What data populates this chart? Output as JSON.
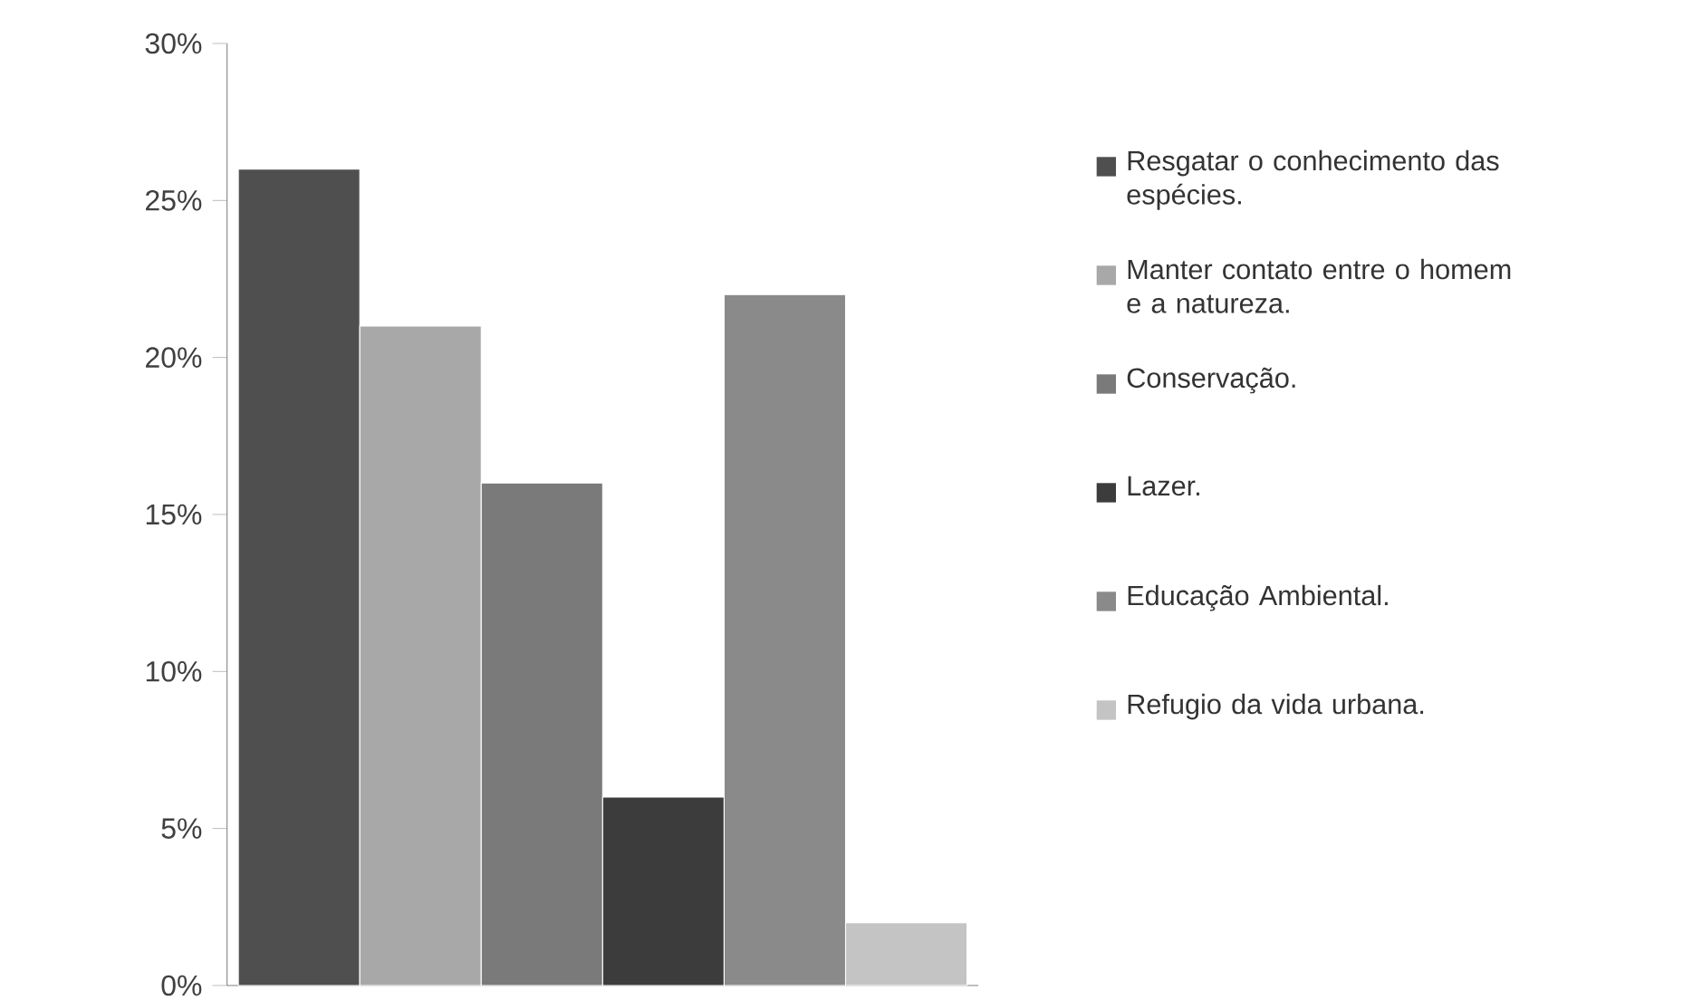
{
  "chart_data": {
    "type": "bar",
    "categories": [
      null
    ],
    "series": [
      {
        "name": "Resgatar o conhecimento das espécies.",
        "color": "#4f4f4f",
        "values": [
          26
        ]
      },
      {
        "name": "Manter contato entre o homem e a natureza.",
        "color": "#a8a8a8",
        "values": [
          21
        ]
      },
      {
        "name": "Conservação.",
        "color": "#7a7a7a",
        "values": [
          16
        ]
      },
      {
        "name": "Lazer.",
        "color": "#3c3c3c",
        "values": [
          6
        ]
      },
      {
        "name": "Educação Ambiental.",
        "color": "#8a8a8a",
        "values": [
          22
        ]
      },
      {
        "name": "Refugio da vida urbana.",
        "color": "#c4c4c4",
        "values": [
          2
        ]
      }
    ],
    "ylim": [
      0,
      30
    ],
    "yticks": [
      {
        "value": 0,
        "label": "0%"
      },
      {
        "value": 5,
        "label": "5%"
      },
      {
        "value": 10,
        "label": "10%"
      },
      {
        "value": 15,
        "label": "15%"
      },
      {
        "value": 20,
        "label": "20%"
      },
      {
        "value": 25,
        "label": "25%"
      },
      {
        "value": 30,
        "label": "30%"
      }
    ],
    "legend": "right"
  }
}
